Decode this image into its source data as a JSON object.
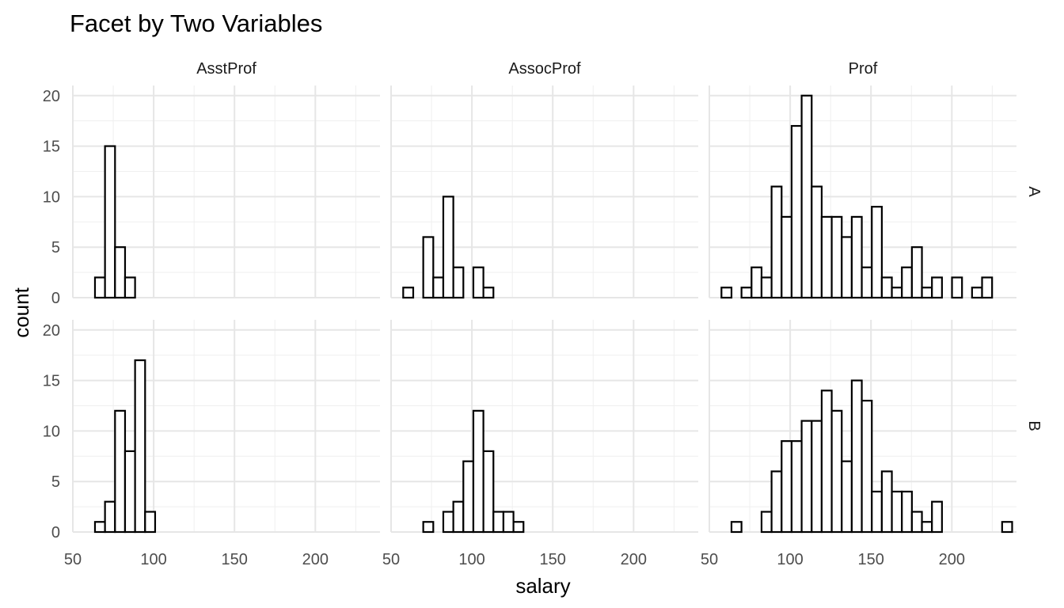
{
  "chart_data": {
    "type": "bar",
    "title": "Facet by Two Variables",
    "xlabel": "salary",
    "ylabel": "count",
    "x_ticks": [
      "50",
      "100",
      "150",
      "200"
    ],
    "y_ticks": [
      "0",
      "5",
      "10",
      "15",
      "20"
    ],
    "xlim": [
      50,
      240
    ],
    "ylim": [
      0,
      21
    ],
    "grid": true,
    "bar_fill": "#ffffff",
    "bar_outline": "#000000",
    "bin_start": 57.5,
    "bin_width": 6.2,
    "column_facets": [
      "AsstProf",
      "AssocProf",
      "Prof"
    ],
    "row_facets": [
      "A",
      "B"
    ],
    "panels": [
      {
        "row": "A",
        "col": "AsstProf",
        "counts": [
          0,
          2,
          15,
          5,
          2,
          0,
          0,
          0,
          0,
          0,
          0,
          0,
          0,
          0,
          0,
          0,
          0,
          0,
          0,
          0,
          0,
          0,
          0,
          0,
          0,
          0,
          0,
          0,
          0
        ]
      },
      {
        "row": "A",
        "col": "AssocProf",
        "counts": [
          1,
          0,
          6,
          2,
          10,
          3,
          0,
          3,
          1,
          0,
          0,
          0,
          0,
          0,
          0,
          0,
          0,
          0,
          0,
          0,
          0,
          0,
          0,
          0,
          0,
          0,
          0,
          0,
          0
        ]
      },
      {
        "row": "A",
        "col": "Prof",
        "counts": [
          1,
          0,
          1,
          3,
          2,
          11,
          8,
          17,
          20,
          11,
          8,
          8,
          6,
          8,
          3,
          9,
          2,
          1,
          3,
          5,
          1,
          2,
          0,
          2,
          0,
          1,
          2,
          0,
          0
        ]
      },
      {
        "row": "B",
        "col": "AsstProf",
        "counts": [
          0,
          1,
          3,
          12,
          8,
          17,
          2,
          0,
          0,
          0,
          0,
          0,
          0,
          0,
          0,
          0,
          0,
          0,
          0,
          0,
          0,
          0,
          0,
          0,
          0,
          0,
          0,
          0,
          0
        ]
      },
      {
        "row": "B",
        "col": "AssocProf",
        "counts": [
          0,
          0,
          1,
          0,
          2,
          3,
          7,
          12,
          8,
          2,
          2,
          1,
          0,
          0,
          0,
          0,
          0,
          0,
          0,
          0,
          0,
          0,
          0,
          0,
          0,
          0,
          0,
          0,
          0
        ]
      },
      {
        "row": "B",
        "col": "Prof",
        "counts": [
          0,
          1,
          0,
          0,
          2,
          6,
          9,
          9,
          11,
          11,
          14,
          12,
          7,
          15,
          13,
          4,
          6,
          4,
          4,
          2,
          1,
          3,
          0,
          0,
          0,
          0,
          0,
          0,
          1
        ]
      }
    ]
  }
}
